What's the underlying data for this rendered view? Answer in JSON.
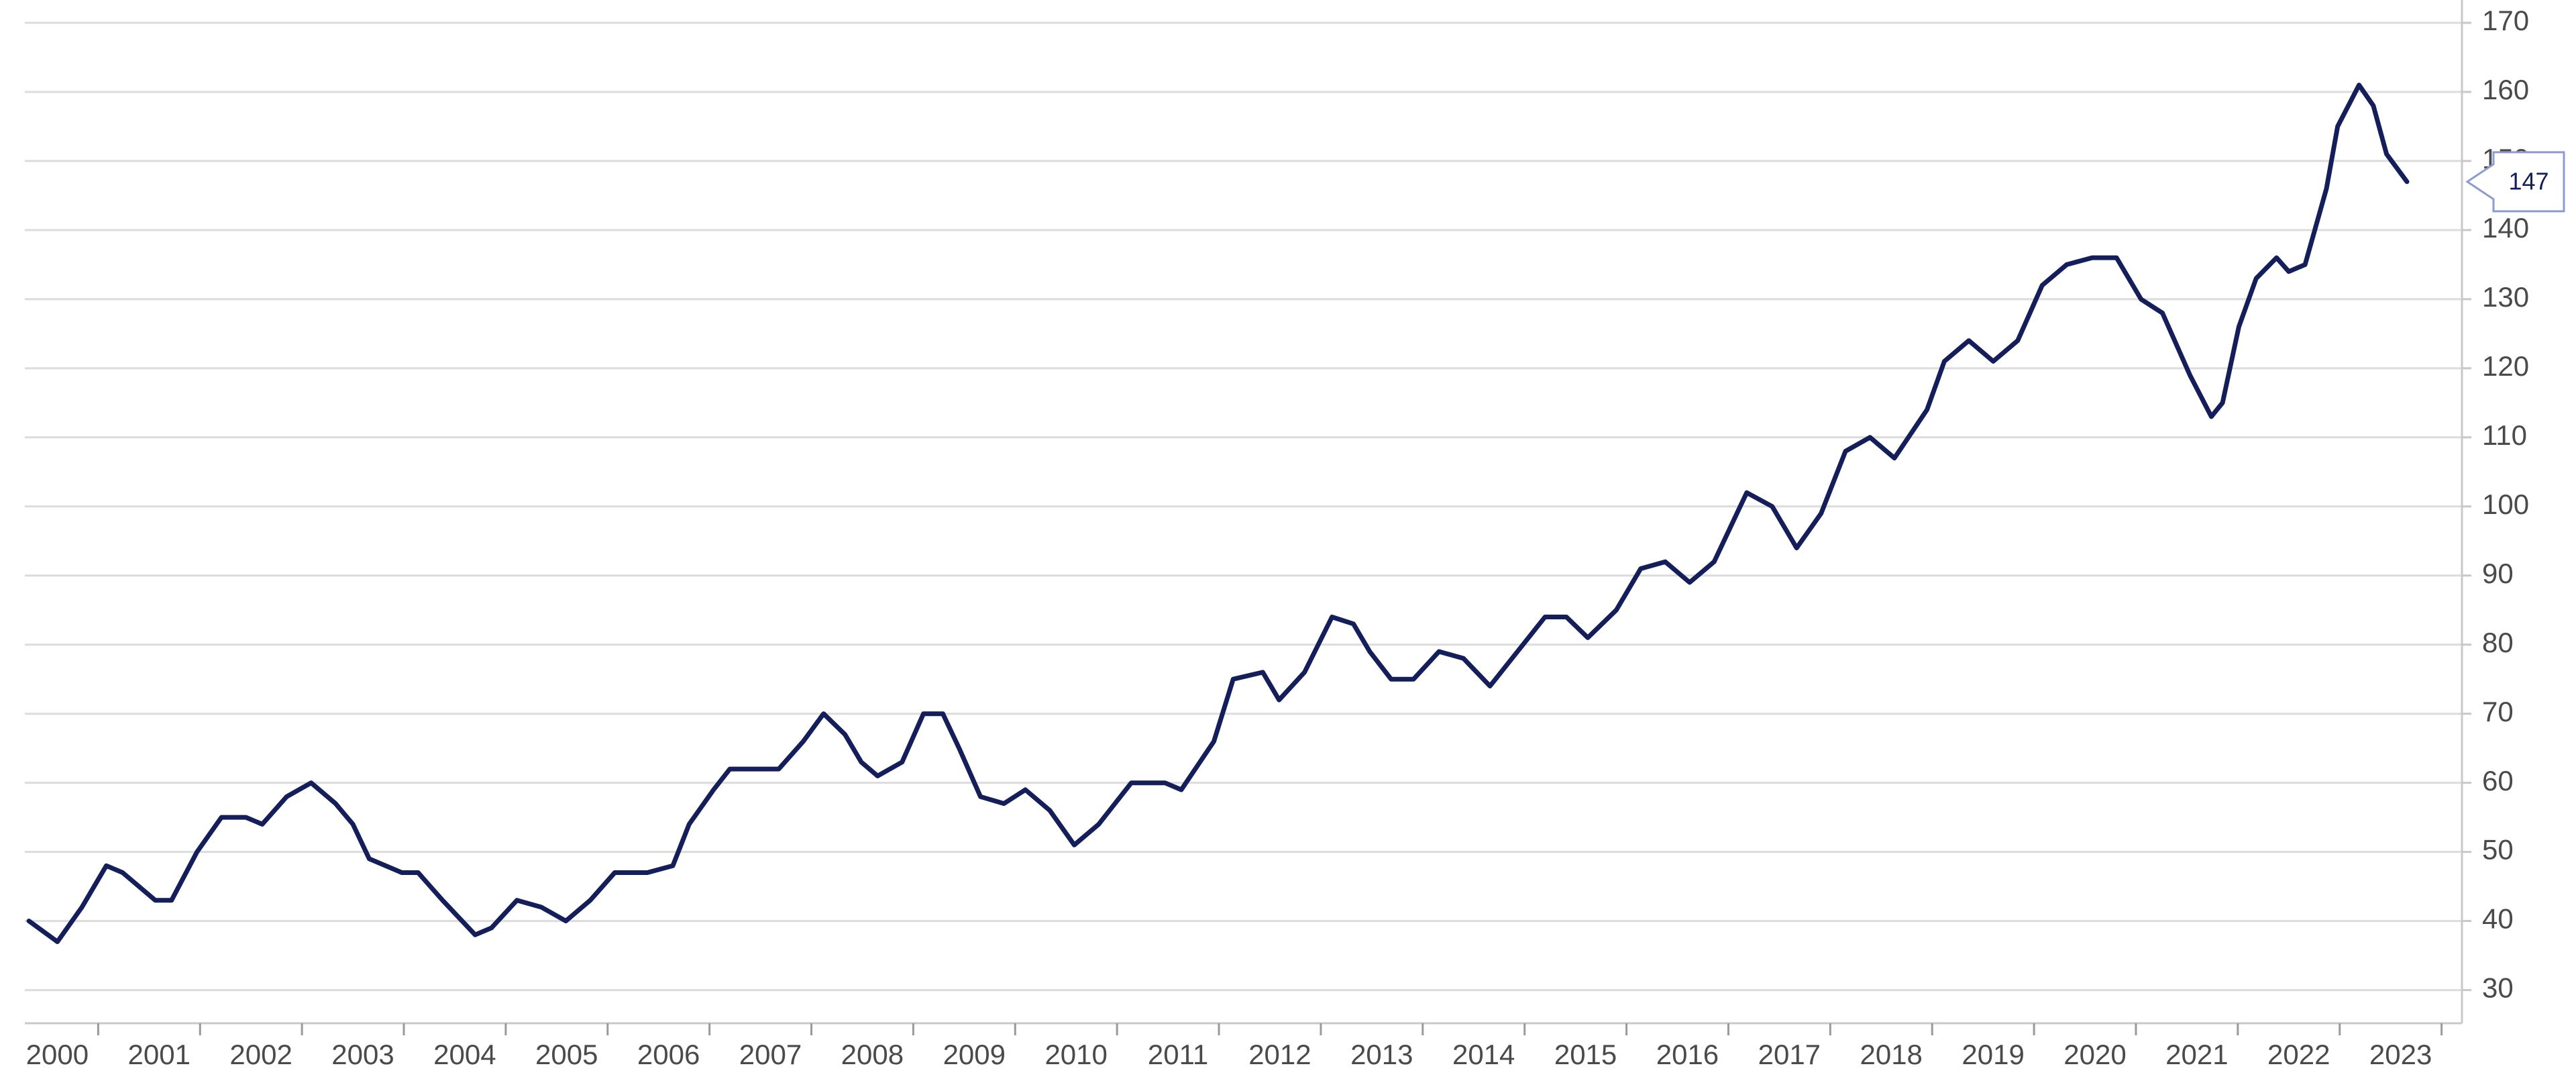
{
  "chart_data": {
    "type": "line",
    "x": [
      1999.32,
      1999.6,
      1999.84,
      2000.08,
      2000.24,
      2000.56,
      2000.72,
      2000.97,
      2001.21,
      2001.45,
      2001.61,
      2001.85,
      2002.09,
      2002.33,
      2002.5,
      2002.66,
      2002.98,
      2003.14,
      2003.38,
      2003.7,
      2003.86,
      2004.11,
      2004.35,
      2004.59,
      2004.83,
      2005.07,
      2005.39,
      2005.64,
      2005.8,
      2006.04,
      2006.2,
      2006.52,
      2006.68,
      2006.92,
      2007.12,
      2007.33,
      2007.49,
      2007.65,
      2007.89,
      2008.1,
      2008.29,
      2008.45,
      2008.66,
      2008.89,
      2009.1,
      2009.34,
      2009.58,
      2009.82,
      2010.14,
      2010.47,
      2010.63,
      2010.95,
      2011.14,
      2011.43,
      2011.59,
      2011.84,
      2012.11,
      2012.32,
      2012.48,
      2012.69,
      2012.91,
      2013.16,
      2013.4,
      2013.66,
      2013.93,
      2014.2,
      2014.41,
      2014.62,
      2014.9,
      2015.14,
      2015.38,
      2015.62,
      2015.86,
      2016.18,
      2016.43,
      2016.67,
      2016.91,
      2017.15,
      2017.39,
      2017.63,
      2017.95,
      2018.12,
      2018.36,
      2018.6,
      2018.84,
      2019.08,
      2019.32,
      2019.57,
      2019.81,
      2020.05,
      2020.26,
      2020.53,
      2020.74,
      2020.85,
      2021.01,
      2021.18,
      2021.38,
      2021.5,
      2021.66,
      2021.87,
      2021.98,
      2022.19,
      2022.33,
      2022.46,
      2022.66
    ],
    "series": [
      {
        "color": "#141e5a",
        "values": [
          40,
          37,
          42,
          48,
          47,
          43,
          43,
          50,
          55,
          55,
          54,
          58,
          60,
          57,
          54,
          49,
          47,
          47,
          43,
          38,
          39,
          43,
          42,
          40,
          43,
          47,
          47,
          48,
          54,
          59,
          62,
          62,
          62,
          66,
          70,
          67,
          63,
          61,
          63,
          70,
          70,
          65,
          58,
          57,
          59,
          56,
          51,
          54,
          60,
          60,
          59,
          66,
          75,
          76,
          72,
          76,
          84,
          83,
          79,
          75,
          75,
          79,
          78,
          74,
          79,
          84,
          84,
          81,
          85,
          91,
          92,
          89,
          92,
          102,
          100,
          94,
          99,
          108,
          110,
          107,
          114,
          121,
          124,
          121,
          124,
          132,
          135,
          136,
          136,
          130,
          128,
          119,
          113,
          115,
          126,
          133,
          136,
          134,
          135,
          146,
          155,
          161,
          158,
          151,
          147
        ]
      }
    ],
    "xlim": [
      1999.28,
      2023.2
    ],
    "xticks": [
      2000,
      2001,
      2002,
      2003,
      2004,
      2005,
      2006,
      2007,
      2008,
      2009,
      2010,
      2011,
      2012,
      2013,
      2014,
      2015,
      2016,
      2017,
      2018,
      2019,
      2020,
      2021,
      2022,
      2023
    ],
    "ylim": [
      25.2,
      173.3
    ],
    "yticks": [
      30,
      40,
      50,
      60,
      70,
      80,
      90,
      100,
      110,
      120,
      130,
      140,
      150,
      160,
      170
    ],
    "grid": true
  }
}
